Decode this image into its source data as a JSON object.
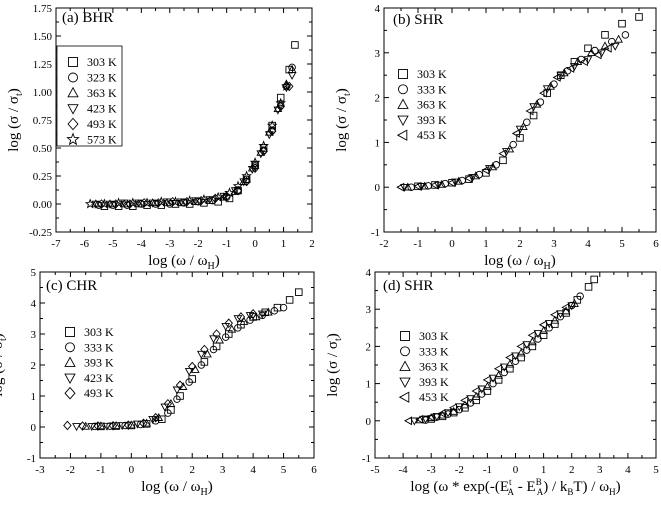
{
  "chart_data": [
    {
      "type": "scatter",
      "title": "(a) BHR",
      "xlabel": "log (ω / ω",
      "xlabel_sub": "H",
      "xlabel_end": ")",
      "ylabel": "log (σ / σ",
      "ylabel_sub": "t",
      "ylabel_end": ")",
      "xlim": [
        -7,
        2
      ],
      "ylim": [
        -0.25,
        1.75
      ],
      "xticks": [
        -7,
        -6,
        -5,
        -4,
        -3,
        -2,
        -1,
        0,
        1,
        2
      ],
      "yticks": [
        -0.25,
        0.0,
        0.25,
        0.5,
        0.75,
        1.0,
        1.25,
        1.5,
        1.75
      ],
      "xtick_labels": [
        "-7",
        "-6",
        "-5",
        "-4",
        "-3",
        "-2",
        "-1",
        "0",
        "1",
        "2"
      ],
      "ytick_labels": [
        "-0.25",
        "0.00",
        "0.25",
        "0.50",
        "0.75",
        "1.00",
        "1.25",
        "1.50",
        "1.75"
      ],
      "legend_box": true,
      "legend_position": "upper-left",
      "series": [
        {
          "name": "303 K",
          "marker": "square",
          "x": [
            -5.3,
            -4.8,
            -4.3,
            -3.8,
            -3.3,
            -2.8,
            -2.3,
            -1.8,
            -1.3,
            -0.9,
            -0.6,
            -0.3,
            0.0,
            0.3,
            0.6,
            0.9,
            1.2,
            1.4
          ],
          "y": [
            -0.02,
            -0.02,
            -0.02,
            -0.01,
            -0.01,
            0.0,
            0.0,
            0.01,
            0.02,
            0.05,
            0.12,
            0.22,
            0.35,
            0.5,
            0.7,
            0.95,
            1.2,
            1.42
          ]
        },
        {
          "name": "323 K",
          "marker": "circle",
          "x": [
            -5.5,
            -5.0,
            -4.5,
            -4.0,
            -3.5,
            -3.0,
            -2.5,
            -2.0,
            -1.5,
            -1.0,
            -0.6,
            -0.3,
            0.0,
            0.3,
            0.6,
            0.9,
            1.1,
            1.3
          ],
          "y": [
            -0.01,
            -0.01,
            -0.01,
            0.0,
            0.0,
            0.0,
            0.01,
            0.02,
            0.03,
            0.06,
            0.12,
            0.22,
            0.34,
            0.48,
            0.66,
            0.88,
            1.05,
            1.22
          ]
        },
        {
          "name": "363 K",
          "marker": "triangle-up",
          "x": [
            -5.6,
            -5.1,
            -4.6,
            -4.1,
            -3.6,
            -3.1,
            -2.6,
            -2.1,
            -1.6,
            -1.1,
            -0.7,
            -0.4,
            -0.1,
            0.2,
            0.5,
            0.8,
            1.1,
            1.3
          ],
          "y": [
            0.0,
            0.0,
            0.0,
            0.0,
            0.01,
            0.01,
            0.01,
            0.02,
            0.03,
            0.06,
            0.11,
            0.2,
            0.32,
            0.46,
            0.64,
            0.85,
            1.07,
            1.2
          ]
        },
        {
          "name": "423 K",
          "marker": "triangle-down",
          "x": [
            -5.6,
            -5.1,
            -4.6,
            -4.1,
            -3.6,
            -3.1,
            -2.6,
            -2.1,
            -1.6,
            -1.1,
            -0.7,
            -0.4,
            -0.1,
            0.2,
            0.5,
            0.8,
            1.1,
            1.3
          ],
          "y": [
            0.0,
            0.0,
            0.01,
            0.01,
            0.01,
            0.02,
            0.02,
            0.03,
            0.04,
            0.07,
            0.12,
            0.2,
            0.31,
            0.45,
            0.62,
            0.84,
            1.04,
            1.15
          ]
        },
        {
          "name": "493 K",
          "marker": "diamond",
          "x": [
            -5.4,
            -4.9,
            -4.4,
            -3.9,
            -3.4,
            -2.9,
            -2.4,
            -1.9,
            -1.4,
            -1.0,
            -0.6,
            -0.3,
            0.0,
            0.3,
            0.6,
            0.9,
            1.2
          ],
          "y": [
            0.0,
            0.0,
            0.0,
            0.01,
            0.01,
            0.02,
            0.02,
            0.03,
            0.05,
            0.07,
            0.12,
            0.2,
            0.32,
            0.47,
            0.65,
            0.87,
            1.05
          ]
        },
        {
          "name": "573 K",
          "marker": "star",
          "x": [
            -5.8,
            -5.3,
            -4.8,
            -4.3,
            -3.8,
            -3.3,
            -2.8,
            -2.3,
            -1.8,
            -1.3,
            -0.9,
            -0.6,
            -0.3,
            0.0,
            0.3,
            0.6,
            0.9,
            1.1
          ],
          "y": [
            0.0,
            0.0,
            0.01,
            0.01,
            0.01,
            0.02,
            0.02,
            0.03,
            0.04,
            0.06,
            0.1,
            0.16,
            0.25,
            0.37,
            0.52,
            0.7,
            0.9,
            1.05
          ]
        }
      ]
    },
    {
      "type": "scatter",
      "title": "(b) SHR",
      "xlabel": "log (ω / ω",
      "xlabel_sub": "H",
      "xlabel_end": ")",
      "ylabel": "log (σ / σ",
      "ylabel_sub": "t",
      "ylabel_end": ")",
      "xlim": [
        -2,
        6
      ],
      "ylim": [
        -1,
        4
      ],
      "xticks": [
        -2,
        -1,
        0,
        1,
        2,
        3,
        4,
        5,
        6
      ],
      "yticks": [
        -1,
        0,
        1,
        2,
        3,
        4
      ],
      "xtick_labels": [
        "-2",
        "-1",
        "0",
        "1",
        "2",
        "3",
        "4",
        "5",
        "6"
      ],
      "ytick_labels": [
        "-1",
        "0",
        "1",
        "2",
        "3",
        "4"
      ],
      "legend_box": false,
      "legend_position": "upper-left",
      "series": [
        {
          "name": "303 K",
          "marker": "square",
          "x": [
            -1.0,
            -0.5,
            0.0,
            0.5,
            1.0,
            1.5,
            2.0,
            2.4,
            2.8,
            3.2,
            3.6,
            4.0,
            4.5,
            5.0,
            5.5
          ],
          "y": [
            0.02,
            0.05,
            0.1,
            0.18,
            0.32,
            0.6,
            1.1,
            1.6,
            2.1,
            2.5,
            2.8,
            3.1,
            3.4,
            3.65,
            3.8
          ]
        },
        {
          "name": "333 K",
          "marker": "circle",
          "x": [
            -1.2,
            -0.7,
            -0.2,
            0.3,
            0.8,
            1.3,
            1.8,
            2.2,
            2.6,
            3.0,
            3.4,
            3.8,
            4.2,
            4.7,
            5.1
          ],
          "y": [
            0.0,
            0.03,
            0.08,
            0.15,
            0.28,
            0.5,
            0.95,
            1.45,
            1.9,
            2.3,
            2.6,
            2.85,
            3.05,
            3.25,
            3.4
          ]
        },
        {
          "name": "363 K",
          "marker": "triangle-up",
          "x": [
            -1.3,
            -0.8,
            -0.3,
            0.2,
            0.7,
            1.2,
            1.7,
            2.1,
            2.5,
            2.9,
            3.3,
            3.7,
            4.1,
            4.5,
            4.9
          ],
          "y": [
            0.0,
            0.02,
            0.06,
            0.13,
            0.25,
            0.45,
            0.85,
            1.35,
            1.85,
            2.25,
            2.55,
            2.8,
            3.0,
            3.15,
            3.3
          ]
        },
        {
          "name": "393 K",
          "marker": "triangle-down",
          "x": [
            -1.4,
            -0.9,
            -0.4,
            0.1,
            0.6,
            1.1,
            1.6,
            2.0,
            2.4,
            2.8,
            3.2,
            3.6,
            4.0,
            4.4,
            4.8
          ],
          "y": [
            0.0,
            0.02,
            0.05,
            0.12,
            0.22,
            0.42,
            0.8,
            1.3,
            1.8,
            2.2,
            2.5,
            2.7,
            2.85,
            3.0,
            3.15
          ]
        },
        {
          "name": "453 K",
          "marker": "triangle-left",
          "x": [
            -1.5,
            -1.0,
            -0.5,
            0.0,
            0.5,
            1.0,
            1.5,
            1.9,
            2.3,
            2.7,
            3.1,
            3.5,
            3.9,
            4.3,
            4.6
          ],
          "y": [
            0.0,
            0.02,
            0.05,
            0.1,
            0.2,
            0.38,
            0.75,
            1.2,
            1.7,
            2.1,
            2.45,
            2.65,
            2.8,
            2.95,
            3.1
          ]
        }
      ]
    },
    {
      "type": "scatter",
      "title": "(c) CHR",
      "xlabel": "log (ω / ω",
      "xlabel_sub": "H",
      "xlabel_end": ")",
      "ylabel": "log (σ / σ",
      "ylabel_sub": "t",
      "ylabel_end": ")",
      "xlim": [
        -3,
        6
      ],
      "ylim": [
        -1,
        5
      ],
      "xticks": [
        -3,
        -2,
        -1,
        0,
        1,
        2,
        3,
        4,
        5,
        6
      ],
      "yticks": [
        -1,
        0,
        1,
        2,
        3,
        4,
        5
      ],
      "xtick_labels": [
        "-3",
        "-2",
        "-1",
        "0",
        "1",
        "2",
        "3",
        "4",
        "5",
        "6"
      ],
      "ytick_labels": [
        "-1",
        "0",
        "1",
        "2",
        "3",
        "4",
        "5"
      ],
      "legend_box": false,
      "legend_position": "upper-left",
      "series": [
        {
          "name": "303 K",
          "marker": "square",
          "x": [
            -1.0,
            -0.5,
            0.0,
            0.5,
            1.0,
            1.3,
            1.6,
            2.0,
            2.4,
            2.8,
            3.2,
            3.6,
            4.0,
            4.4,
            4.8,
            5.2,
            5.5
          ],
          "y": [
            0.02,
            0.03,
            0.05,
            0.1,
            0.25,
            0.55,
            1.0,
            1.55,
            2.1,
            2.6,
            3.0,
            3.3,
            3.55,
            3.7,
            3.85,
            4.1,
            4.35
          ]
        },
        {
          "name": "333 K",
          "marker": "circle",
          "x": [
            -1.2,
            -0.7,
            -0.2,
            0.3,
            0.8,
            1.2,
            1.5,
            1.9,
            2.3,
            2.7,
            3.1,
            3.5,
            3.9,
            4.3,
            4.7,
            5.0
          ],
          "y": [
            0.02,
            0.03,
            0.05,
            0.08,
            0.2,
            0.45,
            0.9,
            1.45,
            2.0,
            2.5,
            2.9,
            3.2,
            3.45,
            3.6,
            3.75,
            3.85
          ]
        },
        {
          "name": "393 K",
          "marker": "triangle-up",
          "x": [
            -1.5,
            -1.0,
            -0.5,
            0.0,
            0.5,
            0.9,
            1.3,
            1.7,
            2.1,
            2.5,
            2.9,
            3.3,
            3.7,
            4.1,
            4.5
          ],
          "y": [
            0.02,
            0.03,
            0.04,
            0.06,
            0.12,
            0.3,
            0.75,
            1.3,
            1.85,
            2.35,
            2.8,
            3.15,
            3.4,
            3.55,
            3.7
          ]
        },
        {
          "name": "423 K",
          "marker": "triangle-down",
          "x": [
            -1.8,
            -1.3,
            -0.8,
            -0.3,
            0.2,
            0.7,
            1.1,
            1.5,
            1.9,
            2.3,
            2.7,
            3.1,
            3.5,
            3.9,
            4.3
          ],
          "y": [
            0.02,
            0.02,
            0.03,
            0.05,
            0.1,
            0.25,
            0.65,
            1.2,
            1.8,
            2.35,
            2.85,
            3.25,
            3.5,
            3.6,
            3.65
          ]
        },
        {
          "name": "493 K",
          "marker": "diamond",
          "x": [
            -2.1,
            -1.6,
            -1.1,
            -0.6,
            -0.1,
            0.4,
            0.8,
            1.2,
            1.6,
            2.0,
            2.4,
            2.8,
            3.2,
            3.6,
            4.0
          ],
          "y": [
            0.05,
            0.03,
            0.03,
            0.04,
            0.06,
            0.12,
            0.3,
            0.75,
            1.35,
            1.95,
            2.5,
            3.0,
            3.35,
            3.55,
            3.65
          ]
        }
      ]
    },
    {
      "type": "scatter",
      "title": "(d) SHR",
      "xlabel": "log (ω * exp(-(E",
      "xlabel_sup1": "t",
      "xlabel_sub1": "A",
      "xlabel_mid": " - E",
      "xlabel_sup2": "B",
      "xlabel_sub2": "A",
      "xlabel_mid2": ") / k",
      "xlabel_sub3": "B",
      "xlabel_mid3": "T) / ω",
      "xlabel_sub4": "H",
      "xlabel_end": ")",
      "ylabel": "log (σ / σ",
      "ylabel_sub": "t",
      "ylabel_end": ")",
      "xlim": [
        -5,
        5
      ],
      "ylim": [
        -1,
        4
      ],
      "xticks": [
        -5,
        -4,
        -3,
        -2,
        -1,
        0,
        1,
        2,
        3,
        4,
        5
      ],
      "yticks": [
        -1,
        0,
        1,
        2,
        3,
        4
      ],
      "xtick_labels": [
        "-5",
        "-4",
        "-3",
        "-2",
        "-1",
        "0",
        "1",
        "2",
        "3",
        "4",
        "5"
      ],
      "ytick_labels": [
        "-1",
        "0",
        "1",
        "2",
        "3",
        "4"
      ],
      "legend_box": false,
      "legend_position": "upper-left",
      "series": [
        {
          "name": "303 K",
          "marker": "square",
          "x": [
            -3.0,
            -2.6,
            -2.2,
            -1.8,
            -1.4,
            -1.0,
            -0.6,
            -0.2,
            0.2,
            0.6,
            1.0,
            1.4,
            1.8,
            2.2,
            2.6,
            2.8
          ],
          "y": [
            0.05,
            0.12,
            0.22,
            0.35,
            0.55,
            0.8,
            1.1,
            1.4,
            1.7,
            2.0,
            2.3,
            2.6,
            2.9,
            3.25,
            3.6,
            3.8
          ]
        },
        {
          "name": "333 K",
          "marker": "circle",
          "x": [
            -3.2,
            -2.8,
            -2.4,
            -2.0,
            -1.6,
            -1.2,
            -0.8,
            -0.4,
            0.0,
            0.4,
            0.8,
            1.2,
            1.6,
            2.0,
            2.3
          ],
          "y": [
            0.02,
            0.1,
            0.18,
            0.3,
            0.48,
            0.72,
            1.0,
            1.3,
            1.6,
            1.9,
            2.2,
            2.5,
            2.8,
            3.1,
            3.35
          ]
        },
        {
          "name": "363 K",
          "marker": "triangle-up",
          "x": [
            -3.4,
            -3.0,
            -2.6,
            -2.2,
            -1.8,
            -1.4,
            -1.0,
            -0.6,
            -0.2,
            0.2,
            0.6,
            1.0,
            1.4,
            1.8,
            2.1
          ],
          "y": [
            0.02,
            0.08,
            0.15,
            0.25,
            0.42,
            0.65,
            0.92,
            1.22,
            1.52,
            1.82,
            2.12,
            2.42,
            2.7,
            2.95,
            3.15
          ]
        },
        {
          "name": "393 K",
          "marker": "triangle-down",
          "x": [
            -3.6,
            -3.2,
            -2.8,
            -2.4,
            -2.0,
            -1.6,
            -1.2,
            -0.8,
            -0.4,
            0.0,
            0.4,
            0.8,
            1.2,
            1.6,
            2.0
          ],
          "y": [
            0.0,
            0.05,
            0.12,
            0.22,
            0.38,
            0.6,
            0.86,
            1.15,
            1.45,
            1.75,
            2.05,
            2.35,
            2.62,
            2.88,
            3.1
          ]
        },
        {
          "name": "453 K",
          "marker": "triangle-left",
          "x": [
            -3.8,
            -3.4,
            -3.0,
            -2.6,
            -2.2,
            -1.8,
            -1.4,
            -1.0,
            -0.6,
            -0.2,
            0.2,
            0.6,
            1.0,
            1.4,
            1.8
          ],
          "y": [
            0.0,
            0.04,
            0.1,
            0.2,
            0.35,
            0.55,
            0.8,
            1.1,
            1.4,
            1.7,
            2.0,
            2.3,
            2.58,
            2.85,
            3.05
          ]
        }
      ]
    }
  ]
}
